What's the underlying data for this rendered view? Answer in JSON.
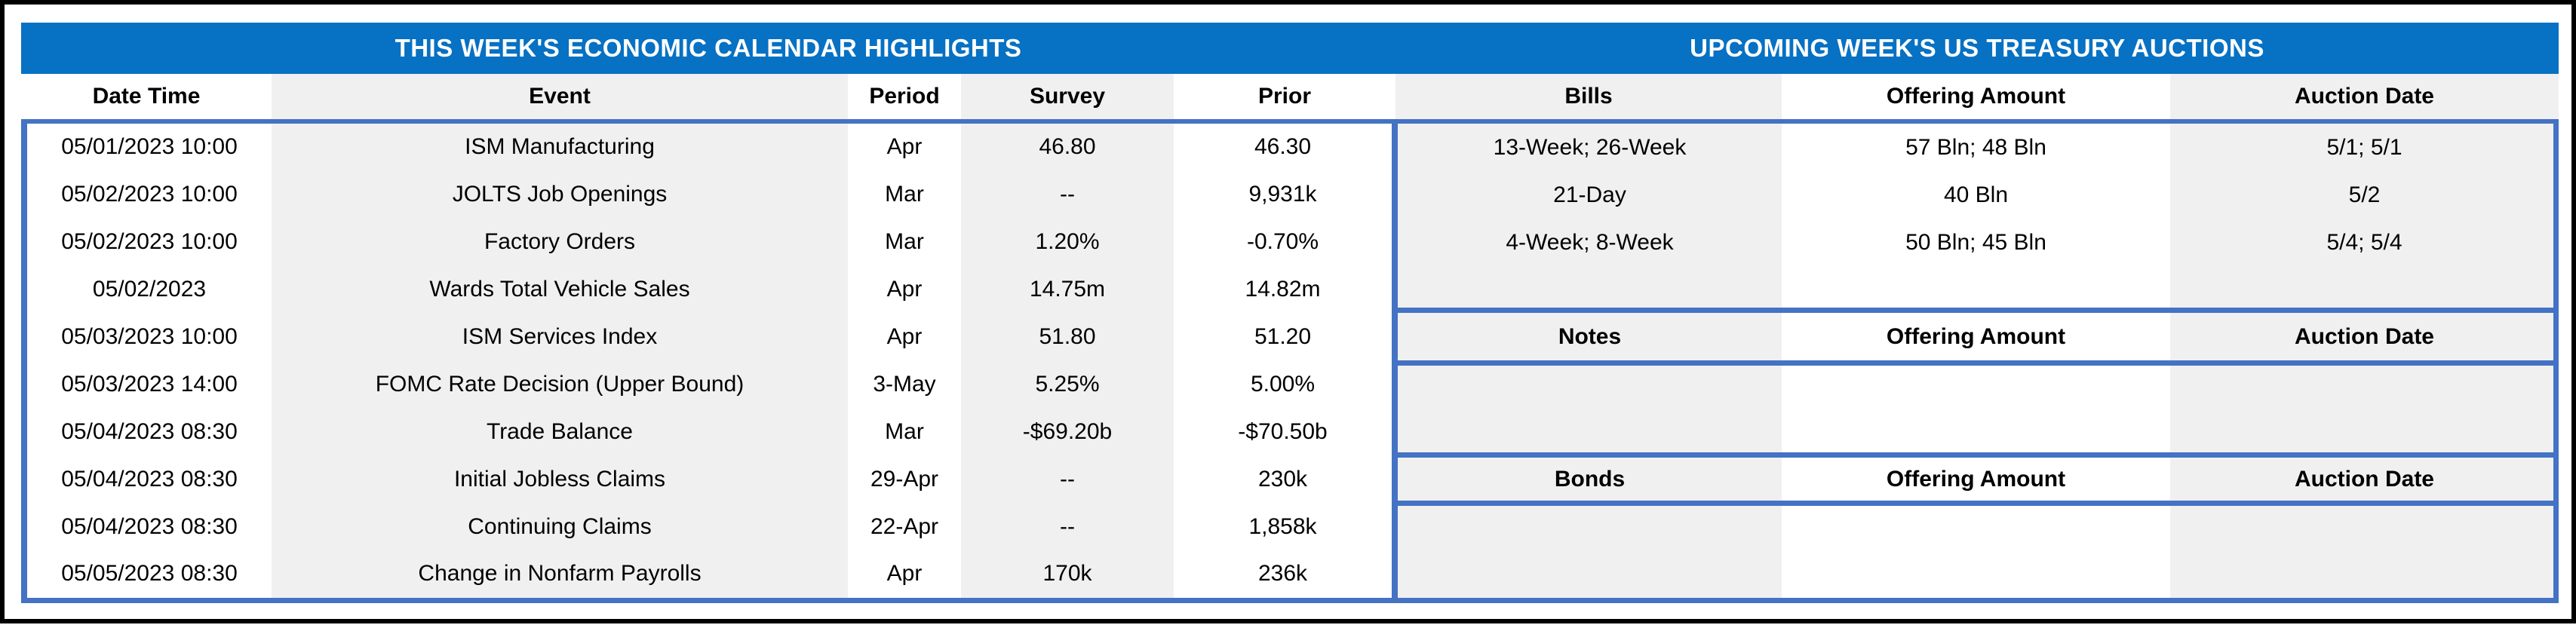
{
  "titles": {
    "calendar": "THIS WEEK'S ECONOMIC CALENDAR HIGHLIGHTS",
    "auctions": "UPCOMING WEEK'S US TREASURY AUCTIONS"
  },
  "calendar": {
    "headers": [
      "Date Time",
      "Event",
      "Period",
      "Survey",
      "Prior"
    ],
    "rows": [
      [
        "05/01/2023 10:00",
        "ISM Manufacturing",
        "Apr",
        "46.80",
        "46.30"
      ],
      [
        "05/02/2023 10:00",
        "JOLTS Job Openings",
        "Mar",
        "--",
        "9,931k"
      ],
      [
        "05/02/2023 10:00",
        "Factory Orders",
        "Mar",
        "1.20%",
        "-0.70%"
      ],
      [
        "05/02/2023",
        "Wards Total Vehicle Sales",
        "Apr",
        "14.75m",
        "14.82m"
      ],
      [
        "05/03/2023 10:00",
        "ISM Services Index",
        "Apr",
        "51.80",
        "51.20"
      ],
      [
        "05/03/2023 14:00",
        "FOMC Rate Decision (Upper Bound)",
        "3-May",
        "5.25%",
        "5.00%"
      ],
      [
        "05/04/2023 08:30",
        "Trade Balance",
        "Mar",
        "-$69.20b",
        "-$70.50b"
      ],
      [
        "05/04/2023 08:30",
        "Initial Jobless Claims",
        "29-Apr",
        "--",
        "230k"
      ],
      [
        "05/04/2023 08:30",
        "Continuing Claims",
        "22-Apr",
        "--",
        "1,858k"
      ],
      [
        "05/05/2023 08:30",
        "Change in Nonfarm Payrolls",
        "Apr",
        "170k",
        "236k"
      ]
    ]
  },
  "auctions": {
    "bills": {
      "headers": [
        "Bills",
        "Offering Amount",
        "Auction Date"
      ],
      "rows": [
        [
          "13-Week; 26-Week",
          "57 Bln; 48 Bln",
          "5/1; 5/1"
        ],
        [
          "21-Day",
          "40 Bln",
          "5/2"
        ],
        [
          "4-Week; 8-Week",
          "50 Bln; 45 Bln",
          "5/4; 5/4"
        ]
      ]
    },
    "notes": {
      "headers": [
        "Notes",
        "Offering Amount",
        "Auction Date"
      ],
      "rows": []
    },
    "bonds": {
      "headers": [
        "Bonds",
        "Offering Amount",
        "Auction Date"
      ],
      "rows": []
    }
  },
  "colors": {
    "title_band_blue": "#0771C3",
    "table_border_blue": "#4472C4",
    "stripe_gray": "#F0F0F0",
    "stripe_white": "#FFFFFF",
    "outer_frame_black": "#000000",
    "title_text": "#FFFFFF",
    "body_text": "#000000"
  }
}
